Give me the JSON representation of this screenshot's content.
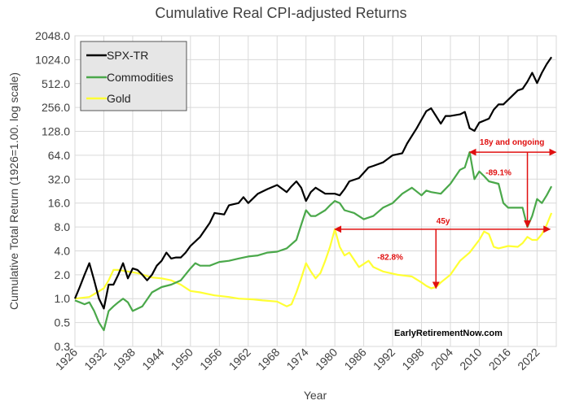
{
  "chart_data": {
    "type": "line",
    "title": "Cumulative Real CPI-adjusted Returns",
    "xlabel": "Year",
    "ylabel": "Cumulative Total Return (1926=1.00. log scale)",
    "y_scale": "log2",
    "xlim": [
      1926,
      2026
    ],
    "ylim": [
      0.25,
      2048
    ],
    "y_ticks": [
      "2048.0",
      "1024.0",
      "512.0",
      "256.0",
      "128.0",
      "64.0",
      "32.0",
      "16.0",
      "8.0",
      "4.0",
      "2.0",
      "1.0",
      "0.5",
      "0.3"
    ],
    "y_tick_values": [
      2048,
      1024,
      512,
      256,
      128,
      64,
      32,
      16,
      8,
      4,
      2,
      1,
      0.5,
      0.25
    ],
    "x_ticks": [
      "1926",
      "1932",
      "1938",
      "1944",
      "1950",
      "1956",
      "1962",
      "1968",
      "1974",
      "1980",
      "1986",
      "1992",
      "1998",
      "2004",
      "2010",
      "2016",
      "2022"
    ],
    "x_tick_values": [
      1926,
      1932,
      1938,
      1944,
      1950,
      1956,
      1962,
      1968,
      1974,
      1980,
      1986,
      1992,
      1998,
      2004,
      2010,
      2016,
      2022
    ],
    "grid": true,
    "legend_position": "top-left",
    "series": [
      {
        "name": "SPX-TR",
        "color": "#000000",
        "x": [
          1926,
          1927,
          1928,
          1929,
          1930,
          1931,
          1932,
          1933,
          1934,
          1935,
          1936,
          1937,
          1938,
          1939,
          1940,
          1941,
          1942,
          1943,
          1944,
          1945,
          1946,
          1947,
          1948,
          1949,
          1950,
          1952,
          1954,
          1955,
          1957,
          1958,
          1960,
          1961,
          1962,
          1964,
          1966,
          1968,
          1970,
          1971,
          1972,
          1973,
          1974,
          1975,
          1976,
          1978,
          1980,
          1981,
          1982,
          1983,
          1985,
          1987,
          1988,
          1990,
          1992,
          1994,
          1995,
          1997,
          1998,
          1999,
          2000,
          2001,
          2002,
          2003,
          2004,
          2006,
          2007,
          2008,
          2009,
          2010,
          2012,
          2013,
          2014,
          2015,
          2016,
          2018,
          2019,
          2020,
          2021,
          2022,
          2023,
          2024,
          2025
        ],
        "values": [
          1.0,
          1.4,
          2.0,
          2.8,
          1.7,
          1.0,
          0.75,
          1.5,
          1.5,
          2.0,
          2.8,
          1.8,
          2.4,
          2.3,
          2.0,
          1.7,
          2.0,
          2.6,
          3.0,
          3.8,
          3.2,
          3.3,
          3.3,
          3.8,
          4.6,
          6.0,
          9.0,
          12.0,
          11.5,
          15.0,
          16.0,
          19.0,
          16.0,
          21.0,
          24.0,
          27.0,
          22.0,
          26.0,
          30.0,
          25.0,
          17.0,
          22.0,
          25.0,
          21.0,
          21.0,
          20.0,
          24.0,
          30.0,
          33.0,
          45.0,
          47.0,
          52.0,
          64.0,
          68.0,
          90.0,
          140.0,
          180.0,
          230.0,
          250.0,
          200.0,
          160.0,
          200.0,
          200.0,
          210.0,
          225.0,
          140.0,
          130.0,
          165.0,
          185.0,
          240.0,
          280.0,
          280.0,
          320.0,
          420.0,
          440.0,
          540.0,
          700.0,
          520.0,
          700.0,
          900.0,
          1100.0
        ]
      },
      {
        "name": "Commodities",
        "color": "#4aa84a",
        "x": [
          1926,
          1927,
          1928,
          1929,
          1930,
          1931,
          1932,
          1933,
          1934,
          1935,
          1936,
          1937,
          1938,
          1940,
          1942,
          1944,
          1946,
          1948,
          1950,
          1951,
          1952,
          1954,
          1956,
          1958,
          1960,
          1962,
          1964,
          1966,
          1968,
          1970,
          1972,
          1973,
          1974,
          1975,
          1976,
          1978,
          1979,
          1980,
          1981,
          1982,
          1984,
          1986,
          1988,
          1990,
          1992,
          1994,
          1996,
          1998,
          1999,
          2000,
          2002,
          2004,
          2006,
          2007,
          2008,
          2009,
          2010,
          2011,
          2012,
          2014,
          2015,
          2016,
          2018,
          2019,
          2020,
          2021,
          2022,
          2023,
          2024,
          2025
        ],
        "values": [
          0.95,
          0.9,
          0.85,
          0.9,
          0.7,
          0.5,
          0.4,
          0.7,
          0.8,
          0.9,
          1.0,
          0.9,
          0.7,
          0.8,
          1.2,
          1.4,
          1.5,
          1.7,
          2.4,
          2.8,
          2.6,
          2.6,
          2.9,
          3.0,
          3.2,
          3.4,
          3.5,
          3.8,
          3.9,
          4.3,
          5.5,
          8.5,
          13.0,
          11.0,
          11.0,
          13.0,
          15.0,
          17.0,
          16.0,
          13.0,
          12.0,
          10.0,
          11.0,
          14.0,
          16.0,
          21.0,
          25.0,
          20.0,
          23.0,
          22.0,
          21.0,
          28.0,
          42.0,
          45.0,
          70.0,
          32.0,
          40.0,
          35.0,
          30.0,
          28.0,
          16.0,
          14.0,
          14.0,
          14.0,
          8.0,
          11.0,
          18.0,
          16.0,
          20.0,
          26.0
        ]
      },
      {
        "name": "Gold",
        "color": "#ffff33",
        "x": [
          1926,
          1929,
          1932,
          1933,
          1934,
          1935,
          1937,
          1939,
          1942,
          1944,
          1946,
          1948,
          1950,
          1952,
          1955,
          1958,
          1960,
          1963,
          1965,
          1968,
          1970,
          1971,
          1972,
          1973,
          1974,
          1975,
          1976,
          1977,
          1978,
          1979,
          1980,
          1981,
          1982,
          1983,
          1985,
          1987,
          1988,
          1990,
          1993,
          1996,
          1998,
          1999,
          2000,
          2001,
          2002,
          2004,
          2006,
          2008,
          2010,
          2011,
          2012,
          2013,
          2014,
          2016,
          2018,
          2019,
          2020,
          2021,
          2022,
          2023,
          2024,
          2025
        ],
        "values": [
          1.0,
          1.05,
          1.35,
          1.7,
          2.3,
          2.3,
          2.2,
          2.1,
          1.85,
          1.8,
          1.7,
          1.5,
          1.25,
          1.2,
          1.1,
          1.05,
          1.0,
          0.98,
          0.95,
          0.92,
          0.8,
          0.85,
          1.2,
          1.8,
          2.8,
          2.2,
          1.8,
          2.1,
          3.0,
          4.5,
          7.5,
          4.5,
          3.5,
          3.8,
          2.5,
          3.0,
          2.5,
          2.2,
          2.0,
          1.9,
          1.6,
          1.45,
          1.35,
          1.4,
          1.6,
          2.0,
          3.0,
          3.8,
          5.5,
          7.0,
          6.5,
          4.5,
          4.3,
          4.6,
          4.5,
          5.0,
          6.0,
          5.5,
          5.5,
          6.5,
          8.5,
          12.0
        ]
      }
    ],
    "annotations": {
      "span_18y": "18y and ongoing",
      "drop_89": "-89.1%",
      "span_45y": "45y",
      "drop_82": "-82.8%",
      "annotation_color": "#e01010"
    },
    "watermark": "EarlyRetirementNow.com"
  }
}
